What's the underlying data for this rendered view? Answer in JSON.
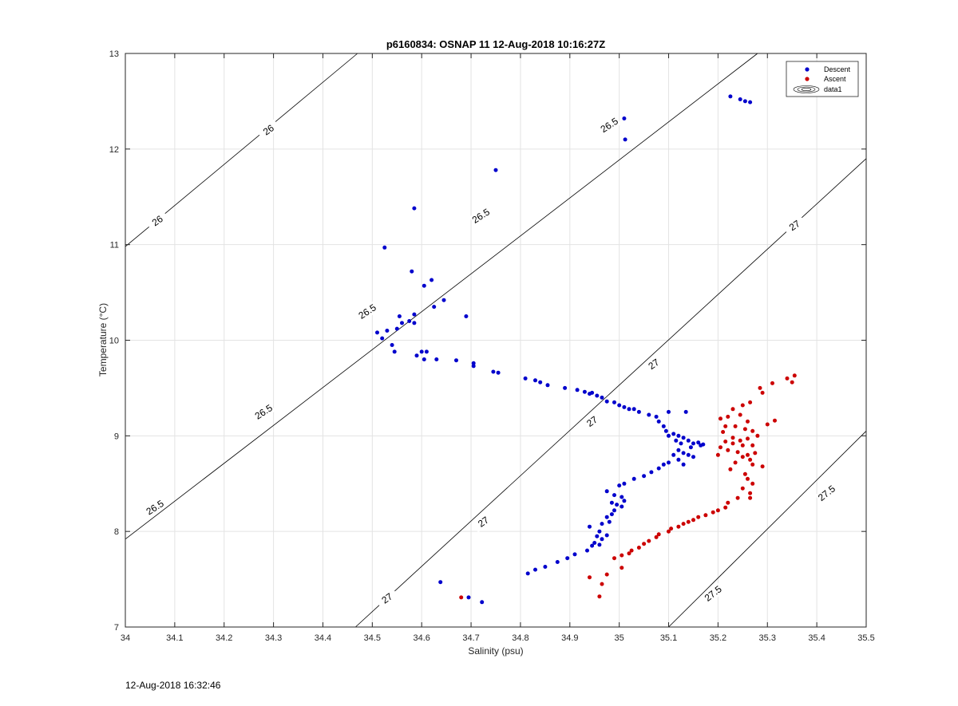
{
  "footer": {
    "timestamp": "12-Aug-2018 16:32:46"
  },
  "chart_data": {
    "type": "scatter",
    "title": "p6160834: OSNAP 11 12-Aug-2018 10:16:27Z",
    "xlabel": "Salinity (psu)",
    "ylabel": "Temperature (°C)",
    "xlim": [
      34,
      35.5
    ],
    "ylim": [
      7,
      13
    ],
    "xticks": [
      "34",
      "34.1",
      "34.2",
      "34.3",
      "34.4",
      "34.5",
      "34.6",
      "34.7",
      "34.8",
      "34.9",
      "35",
      "35.1",
      "35.2",
      "35.3",
      "35.4",
      "35.5"
    ],
    "yticks": [
      "7",
      "8",
      "9",
      "10",
      "11",
      "12",
      "13"
    ],
    "grid": true,
    "legend_placement": "top-right",
    "legend": [
      "Descent",
      "Ascent",
      "data1"
    ],
    "contours": [
      {
        "level": "26",
        "color": "#000000",
        "points": [
          [
            34.0,
            10.98
          ],
          [
            34.47,
            13.0
          ]
        ],
        "labels": [
          [
            34.29,
            12.2,
            35
          ],
          [
            34.065,
            11.25,
            35
          ]
        ]
      },
      {
        "level": "26.5",
        "color": "#000000",
        "points": [
          [
            34.0,
            7.92
          ],
          [
            34.84,
            11.25
          ],
          [
            35.28,
            13.0
          ]
        ],
        "labels": [
          [
            34.98,
            12.25,
            33
          ],
          [
            34.72,
            11.3,
            33
          ],
          [
            34.49,
            10.3,
            33
          ],
          [
            34.28,
            9.25,
            33
          ],
          [
            34.06,
            8.25,
            33
          ]
        ]
      },
      {
        "level": "27",
        "color": "#000000",
        "points": [
          [
            34.466,
            7.0
          ],
          [
            35.5,
            11.9
          ]
        ],
        "labels": [
          [
            35.355,
            11.2,
            35
          ],
          [
            35.07,
            9.75,
            35
          ],
          [
            34.945,
            9.15,
            35
          ],
          [
            34.725,
            8.1,
            35
          ],
          [
            34.53,
            7.3,
            35
          ]
        ]
      },
      {
        "level": "27.5",
        "color": "#000000",
        "points": [
          [
            35.1,
            7.0
          ],
          [
            35.5,
            9.05
          ]
        ],
        "labels": [
          [
            35.42,
            8.4,
            38
          ],
          [
            35.19,
            7.35,
            38
          ]
        ]
      }
    ],
    "series": [
      {
        "name": "Descent",
        "color": "#0000cc",
        "points": [
          [
            35.225,
            12.55
          ],
          [
            35.245,
            12.52
          ],
          [
            35.255,
            12.5
          ],
          [
            35.265,
            12.49
          ],
          [
            35.01,
            12.32
          ],
          [
            35.012,
            12.1
          ],
          [
            34.75,
            11.78
          ],
          [
            34.585,
            11.38
          ],
          [
            34.525,
            10.97
          ],
          [
            34.58,
            10.72
          ],
          [
            34.62,
            10.63
          ],
          [
            34.605,
            10.57
          ],
          [
            34.645,
            10.42
          ],
          [
            34.625,
            10.35
          ],
          [
            34.69,
            10.25
          ],
          [
            34.555,
            10.25
          ],
          [
            34.585,
            10.27
          ],
          [
            34.575,
            10.2
          ],
          [
            34.56,
            10.18
          ],
          [
            34.585,
            10.18
          ],
          [
            34.51,
            10.08
          ],
          [
            34.53,
            10.1
          ],
          [
            34.55,
            10.12
          ],
          [
            34.52,
            10.02
          ],
          [
            34.54,
            9.95
          ],
          [
            34.545,
            9.88
          ],
          [
            34.59,
            9.84
          ],
          [
            34.6,
            9.88
          ],
          [
            34.61,
            9.88
          ],
          [
            34.605,
            9.8
          ],
          [
            34.63,
            9.8
          ],
          [
            34.67,
            9.79
          ],
          [
            34.705,
            9.76
          ],
          [
            34.705,
            9.73
          ],
          [
            34.745,
            9.67
          ],
          [
            34.755,
            9.66
          ],
          [
            34.81,
            9.6
          ],
          [
            34.83,
            9.58
          ],
          [
            34.84,
            9.56
          ],
          [
            34.855,
            9.53
          ],
          [
            34.89,
            9.5
          ],
          [
            34.915,
            9.48
          ],
          [
            34.93,
            9.46
          ],
          [
            34.94,
            9.44
          ],
          [
            34.945,
            9.45
          ],
          [
            34.955,
            9.42
          ],
          [
            34.965,
            9.4
          ],
          [
            34.975,
            9.36
          ],
          [
            34.99,
            9.35
          ],
          [
            35.0,
            9.32
          ],
          [
            35.01,
            9.3
          ],
          [
            35.02,
            9.28
          ],
          [
            35.03,
            9.28
          ],
          [
            35.04,
            9.25
          ],
          [
            35.06,
            9.22
          ],
          [
            35.075,
            9.2
          ],
          [
            35.1,
            9.25
          ],
          [
            35.135,
            9.25
          ],
          [
            35.08,
            9.15
          ],
          [
            35.09,
            9.1
          ],
          [
            35.095,
            9.05
          ],
          [
            35.1,
            9.0
          ],
          [
            35.11,
            9.02
          ],
          [
            35.12,
            9.0
          ],
          [
            35.13,
            8.98
          ],
          [
            35.115,
            8.95
          ],
          [
            35.125,
            8.92
          ],
          [
            35.14,
            8.95
          ],
          [
            35.15,
            8.92
          ],
          [
            35.16,
            8.93
          ],
          [
            35.165,
            8.9
          ],
          [
            35.17,
            8.91
          ],
          [
            35.145,
            8.88
          ],
          [
            35.12,
            8.85
          ],
          [
            35.13,
            8.82
          ],
          [
            35.11,
            8.8
          ],
          [
            35.14,
            8.8
          ],
          [
            35.15,
            8.78
          ],
          [
            35.12,
            8.75
          ],
          [
            35.1,
            8.72
          ],
          [
            35.13,
            8.7
          ],
          [
            35.09,
            8.7
          ],
          [
            35.08,
            8.66
          ],
          [
            35.065,
            8.62
          ],
          [
            35.05,
            8.58
          ],
          [
            35.03,
            8.55
          ],
          [
            35.01,
            8.5
          ],
          [
            35.0,
            8.48
          ],
          [
            34.975,
            8.42
          ],
          [
            34.99,
            8.38
          ],
          [
            35.005,
            8.36
          ],
          [
            35.01,
            8.32
          ],
          [
            34.985,
            8.3
          ],
          [
            34.995,
            8.28
          ],
          [
            35.005,
            8.26
          ],
          [
            34.99,
            8.22
          ],
          [
            34.985,
            8.18
          ],
          [
            34.975,
            8.15
          ],
          [
            34.98,
            8.1
          ],
          [
            34.965,
            8.08
          ],
          [
            34.94,
            8.05
          ],
          [
            34.96,
            8.0
          ],
          [
            34.955,
            7.95
          ],
          [
            34.975,
            7.96
          ],
          [
            34.965,
            7.92
          ],
          [
            34.95,
            7.88
          ],
          [
            34.96,
            7.86
          ],
          [
            34.945,
            7.85
          ],
          [
            34.935,
            7.8
          ],
          [
            34.91,
            7.76
          ],
          [
            34.895,
            7.72
          ],
          [
            34.875,
            7.68
          ],
          [
            34.85,
            7.63
          ],
          [
            34.83,
            7.6
          ],
          [
            34.815,
            7.56
          ],
          [
            34.638,
            7.47
          ],
          [
            34.695,
            7.31
          ],
          [
            34.722,
            7.26
          ]
        ]
      },
      {
        "name": "Ascent",
        "color": "#cc0000",
        "points": [
          [
            35.355,
            9.63
          ],
          [
            35.34,
            9.6
          ],
          [
            35.35,
            9.56
          ],
          [
            35.31,
            9.55
          ],
          [
            35.285,
            9.5
          ],
          [
            35.29,
            9.45
          ],
          [
            35.265,
            9.35
          ],
          [
            35.25,
            9.32
          ],
          [
            35.23,
            9.28
          ],
          [
            35.245,
            9.22
          ],
          [
            35.22,
            9.2
          ],
          [
            35.205,
            9.18
          ],
          [
            35.26,
            9.15
          ],
          [
            35.315,
            9.16
          ],
          [
            35.3,
            9.12
          ],
          [
            35.215,
            9.1
          ],
          [
            35.235,
            9.1
          ],
          [
            35.255,
            9.07
          ],
          [
            35.27,
            9.05
          ],
          [
            35.21,
            9.04
          ],
          [
            35.28,
            9.0
          ],
          [
            35.23,
            8.98
          ],
          [
            35.26,
            8.97
          ],
          [
            35.245,
            8.95
          ],
          [
            35.215,
            8.94
          ],
          [
            35.23,
            8.92
          ],
          [
            35.25,
            8.9
          ],
          [
            35.27,
            8.9
          ],
          [
            35.205,
            8.88
          ],
          [
            35.22,
            8.85
          ],
          [
            35.24,
            8.83
          ],
          [
            35.26,
            8.8
          ],
          [
            35.275,
            8.82
          ],
          [
            35.2,
            8.8
          ],
          [
            35.25,
            8.78
          ],
          [
            35.265,
            8.75
          ],
          [
            35.235,
            8.72
          ],
          [
            35.27,
            8.7
          ],
          [
            35.29,
            8.68
          ],
          [
            35.225,
            8.65
          ],
          [
            35.255,
            8.6
          ],
          [
            35.26,
            8.55
          ],
          [
            35.27,
            8.5
          ],
          [
            35.25,
            8.45
          ],
          [
            35.265,
            8.4
          ],
          [
            35.24,
            8.35
          ],
          [
            35.265,
            8.35
          ],
          [
            35.22,
            8.3
          ],
          [
            35.215,
            8.25
          ],
          [
            35.2,
            8.22
          ],
          [
            35.19,
            8.2
          ],
          [
            35.175,
            8.17
          ],
          [
            35.16,
            8.15
          ],
          [
            35.15,
            8.12
          ],
          [
            35.14,
            8.1
          ],
          [
            35.13,
            8.08
          ],
          [
            35.12,
            8.05
          ],
          [
            35.105,
            8.03
          ],
          [
            35.1,
            8.0
          ],
          [
            35.08,
            7.97
          ],
          [
            35.075,
            7.94
          ],
          [
            35.06,
            7.9
          ],
          [
            35.05,
            7.87
          ],
          [
            35.04,
            7.83
          ],
          [
            35.025,
            7.8
          ],
          [
            35.02,
            7.77
          ],
          [
            35.005,
            7.75
          ],
          [
            34.99,
            7.72
          ],
          [
            34.94,
            7.52
          ],
          [
            34.975,
            7.55
          ],
          [
            35.005,
            7.62
          ],
          [
            34.965,
            7.45
          ],
          [
            34.96,
            7.32
          ],
          [
            34.68,
            7.31
          ]
        ]
      }
    ]
  }
}
